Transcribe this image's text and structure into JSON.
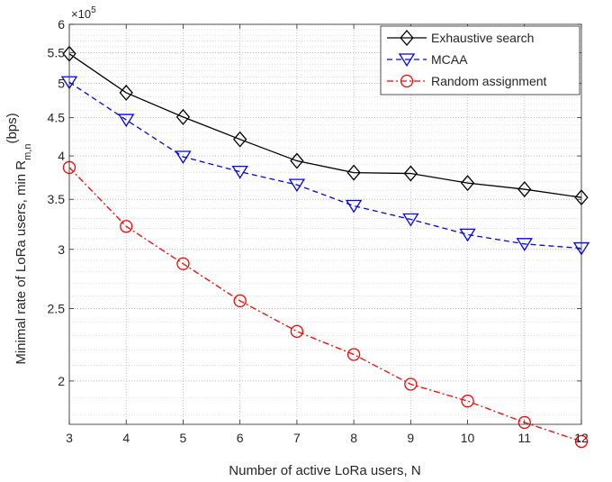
{
  "chart_data": {
    "type": "line",
    "title": "",
    "xlabel": "Number of active LoRa users, N",
    "ylabel_main": "Minimal rate of LoRa users, min R",
    "ylabel_sub": "m,n",
    "ylabel_unit": "(bps)",
    "exponent_base": "×10",
    "exponent_power": "5",
    "x": [
      3,
      4,
      5,
      6,
      7,
      8,
      9,
      10,
      11,
      12
    ],
    "xlim": [
      3,
      12
    ],
    "ylim": [
      1.75,
      6
    ],
    "yscale": "log",
    "yticks": [
      2,
      2.5,
      3,
      3.5,
      4,
      4.5,
      5,
      5.5,
      6
    ],
    "ytick_labels": [
      "2",
      "2.5",
      "3",
      "3.5",
      "4",
      "4.5",
      "5",
      "5.5",
      "6"
    ],
    "grid": "major and minor, dotted",
    "legend_position": "top-right",
    "series": [
      {
        "name": "Exhaustive search",
        "color": "#000000",
        "dash": "solid",
        "marker": "diamond",
        "values": [
          5.48,
          4.86,
          4.51,
          4.21,
          3.94,
          3.8,
          3.79,
          3.68,
          3.61,
          3.52
        ]
      },
      {
        "name": "MCAA",
        "color": "#0000ff",
        "dash": "dashed",
        "marker": "triangle-down",
        "values": [
          5.02,
          4.47,
          3.99,
          3.81,
          3.66,
          3.43,
          3.29,
          3.14,
          3.05,
          3.01
        ]
      },
      {
        "name": "Random assignment",
        "color": "#ff0000",
        "dash": "dash-dot",
        "marker": "circle",
        "values": [
          3.86,
          3.22,
          2.87,
          2.56,
          2.33,
          2.17,
          1.98,
          1.88,
          1.76,
          1.66
        ]
      }
    ]
  }
}
